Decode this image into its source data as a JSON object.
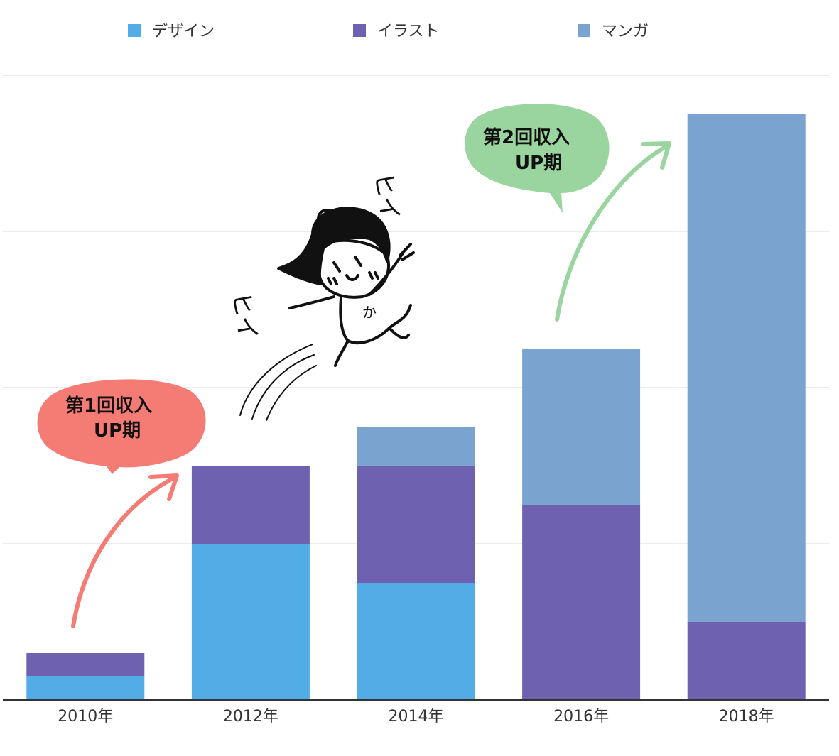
{
  "chart_data": {
    "type": "bar",
    "stacked": true,
    "categories": [
      "2010年",
      "2012年",
      "2014年",
      "2016年",
      "2018年"
    ],
    "series": [
      {
        "name": "デザイン",
        "color": "#52ace6",
        "values": [
          0.15,
          1.0,
          0.75,
          0,
          0
        ]
      },
      {
        "name": "イラスト",
        "color": "#6e62b0",
        "values": [
          0.15,
          0.5,
          0.75,
          1.25,
          0.5
        ]
      },
      {
        "name": "マンガ",
        "color": "#7aa3cf",
        "values": [
          0,
          0,
          0.25,
          1.0,
          3.25
        ]
      }
    ],
    "ylim": [
      0,
      4
    ],
    "grid": true,
    "legend": "top",
    "annotations": {
      "first_bubble": {
        "lines": [
          "第1回収入",
          "UP期"
        ],
        "color": "#f47c74"
      },
      "second_bubble": {
        "lines": [
          "第2回収入",
          "UP期"
        ],
        "color": "#9ad49f"
      },
      "shout_left": "ヒイ",
      "shout_right": "ヒイ",
      "shirt_text": "か"
    }
  }
}
